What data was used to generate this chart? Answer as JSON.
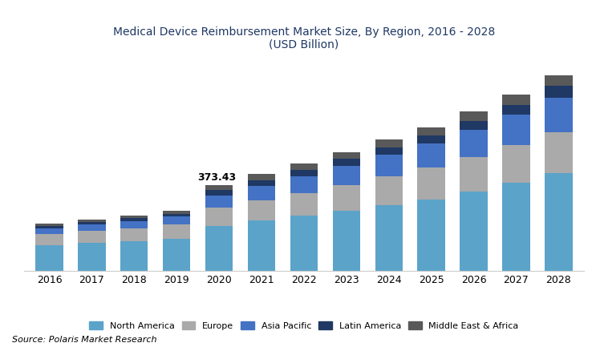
{
  "years": [
    2016,
    2017,
    2018,
    2019,
    2020,
    2021,
    2022,
    2023,
    2024,
    2025,
    2026,
    2027,
    2028
  ],
  "north_america": [
    112,
    120,
    128,
    138,
    195,
    218,
    238,
    260,
    285,
    310,
    345,
    382,
    425
  ],
  "europe": [
    48,
    52,
    57,
    62,
    78,
    88,
    100,
    113,
    125,
    138,
    150,
    163,
    178
  ],
  "asia_pacific": [
    25,
    28,
    31,
    35,
    55,
    63,
    72,
    82,
    93,
    104,
    117,
    132,
    150
  ],
  "latin_america": [
    10,
    11,
    12,
    13,
    22,
    25,
    27,
    30,
    33,
    36,
    40,
    44,
    49
  ],
  "middle_east_africa": [
    10,
    11,
    12,
    13,
    23,
    26,
    28,
    31,
    33,
    36,
    39,
    43,
    48
  ],
  "annotation_year": 2020,
  "annotation_value": "373.43",
  "colors": {
    "north_america": "#5BA3C9",
    "europe": "#AAAAAA",
    "asia_pacific": "#4472C4",
    "latin_america": "#1F3864",
    "middle_east_africa": "#595959"
  },
  "title_line1": "Medical Device Reimbursement Market Size, By Region, 2016 - 2028",
  "title_line2": "(USD Billion)",
  "legend_labels": [
    "North America",
    "Europe",
    "Asia Pacific",
    "Latin America",
    "Middle East & Africa"
  ],
  "source_text": "Source: Polaris Market Research",
  "background_color": "#FFFFFF",
  "bar_width": 0.65,
  "ylim_max": 920
}
